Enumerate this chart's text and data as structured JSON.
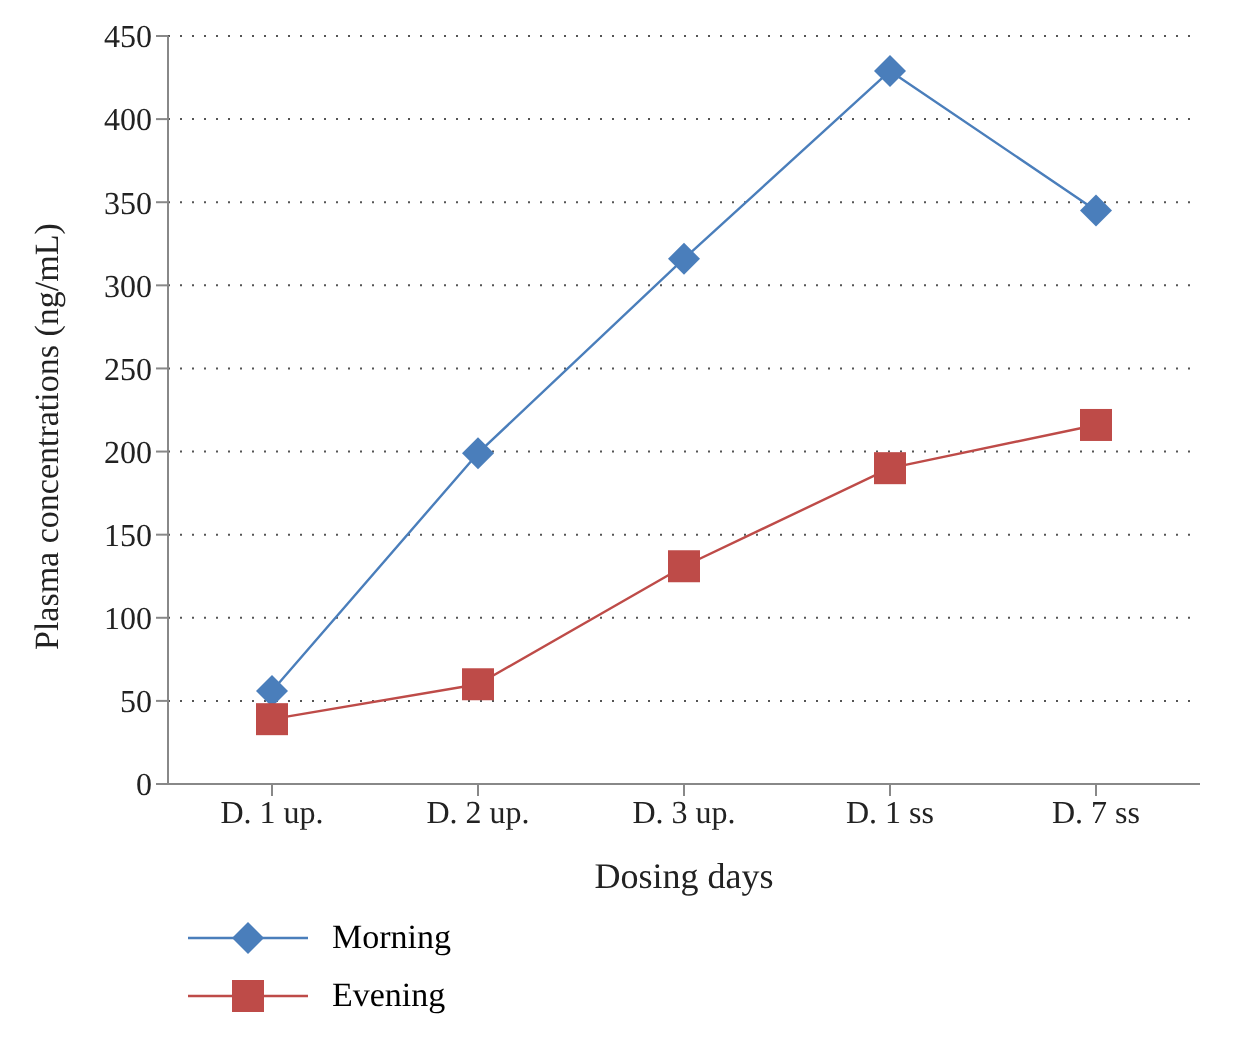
{
  "chart_data": {
    "type": "line",
    "xlabel": "Dosing days",
    "ylabel": "Plasma concentrations (ng/mL)",
    "categories": [
      "D. 1 up.",
      "D. 2 up.",
      "D. 3 up.",
      "D. 1 ss",
      "D. 7 ss"
    ],
    "series": [
      {
        "name": "Morning",
        "color": "#4a7ebb",
        "marker": "diamond",
        "values": [
          56,
          199,
          316,
          429,
          345
        ]
      },
      {
        "name": "Evening",
        "color": "#be4b48",
        "marker": "square",
        "values": [
          39,
          60,
          131,
          190,
          216
        ]
      }
    ],
    "ylim": [
      0,
      450
    ],
    "yticks": [
      0,
      50,
      100,
      150,
      200,
      250,
      300,
      350,
      400,
      450
    ],
    "grid": "y",
    "legend": "bottom left"
  }
}
